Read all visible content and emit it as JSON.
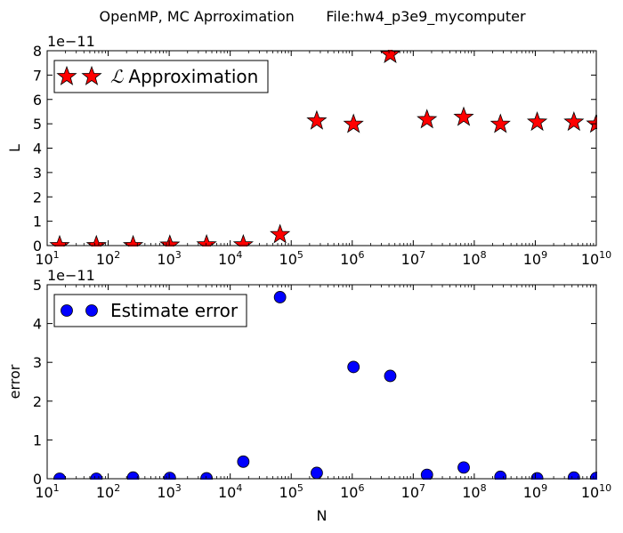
{
  "figure": {
    "title": "OpenMP, MC Aprroximation       File:hw4_p3e9_mycomputer"
  },
  "chart_data": [
    {
      "type": "scatter",
      "title": "",
      "xlabel": "",
      "ylabel": "L",
      "x_scale": "log",
      "x_base": 10,
      "xlim": [
        10,
        10000000000
      ],
      "ylim": [
        0,
        8
      ],
      "y_offset_label": "1e−11",
      "y_multiplier": 1e-11,
      "y_ticks": [
        "0",
        "1",
        "2",
        "3",
        "4",
        "5",
        "6",
        "7",
        "8"
      ],
      "x_ticks": [
        {
          "base": "10",
          "exp": "1"
        },
        {
          "base": "10",
          "exp": "2"
        },
        {
          "base": "10",
          "exp": "3"
        },
        {
          "base": "10",
          "exp": "4"
        },
        {
          "base": "10",
          "exp": "5"
        },
        {
          "base": "10",
          "exp": "6"
        },
        {
          "base": "10",
          "exp": "7"
        },
        {
          "base": "10",
          "exp": "8"
        },
        {
          "base": "10",
          "exp": "9"
        },
        {
          "base": "10",
          "exp": "10"
        }
      ],
      "grid": false,
      "legend": {
        "position": "top-left",
        "marker": "star",
        "script_symbol": "ℒ",
        "label": "Approximation"
      },
      "series": [
        {
          "name": "ℒ Approximation",
          "marker": "star",
          "color": "#ff0000",
          "x": [
            16,
            64,
            256,
            1024,
            4096,
            16384,
            65536,
            262144,
            1048576,
            4194304,
            16777216,
            67108864,
            268435456,
            1073741824,
            4294967296,
            10000000000
          ],
          "y": [
            0.0,
            0.0,
            0.0,
            0.02,
            0.03,
            0.03,
            0.45,
            5.12,
            4.98,
            7.85,
            5.17,
            5.27,
            4.98,
            5.07,
            5.07,
            4.99
          ]
        }
      ]
    },
    {
      "type": "scatter",
      "title": "",
      "xlabel": "N",
      "ylabel": "error",
      "x_scale": "log",
      "x_base": 10,
      "xlim": [
        10,
        10000000000
      ],
      "ylim": [
        0,
        5
      ],
      "y_offset_label": "1e−11",
      "y_multiplier": 1e-11,
      "y_ticks": [
        "0",
        "1",
        "2",
        "3",
        "4",
        "5"
      ],
      "x_ticks": [
        {
          "base": "10",
          "exp": "1"
        },
        {
          "base": "10",
          "exp": "2"
        },
        {
          "base": "10",
          "exp": "3"
        },
        {
          "base": "10",
          "exp": "4"
        },
        {
          "base": "10",
          "exp": "5"
        },
        {
          "base": "10",
          "exp": "6"
        },
        {
          "base": "10",
          "exp": "7"
        },
        {
          "base": "10",
          "exp": "8"
        },
        {
          "base": "10",
          "exp": "9"
        },
        {
          "base": "10",
          "exp": "10"
        }
      ],
      "grid": false,
      "legend": {
        "position": "top-left",
        "marker": "circle",
        "label": "Estimate error"
      },
      "series": [
        {
          "name": "Estimate error",
          "marker": "circle",
          "color": "#0000ff",
          "x": [
            16,
            64,
            256,
            1024,
            4096,
            16384,
            65536,
            262144,
            1048576,
            4194304,
            16777216,
            67108864,
            268435456,
            1073741824,
            4294967296,
            10000000000
          ],
          "y": [
            0.0,
            0.0,
            0.03,
            0.02,
            0.01,
            0.44,
            4.68,
            0.15,
            2.88,
            2.65,
            0.1,
            0.29,
            0.05,
            0.01,
            0.03,
            0.02
          ]
        }
      ]
    }
  ]
}
